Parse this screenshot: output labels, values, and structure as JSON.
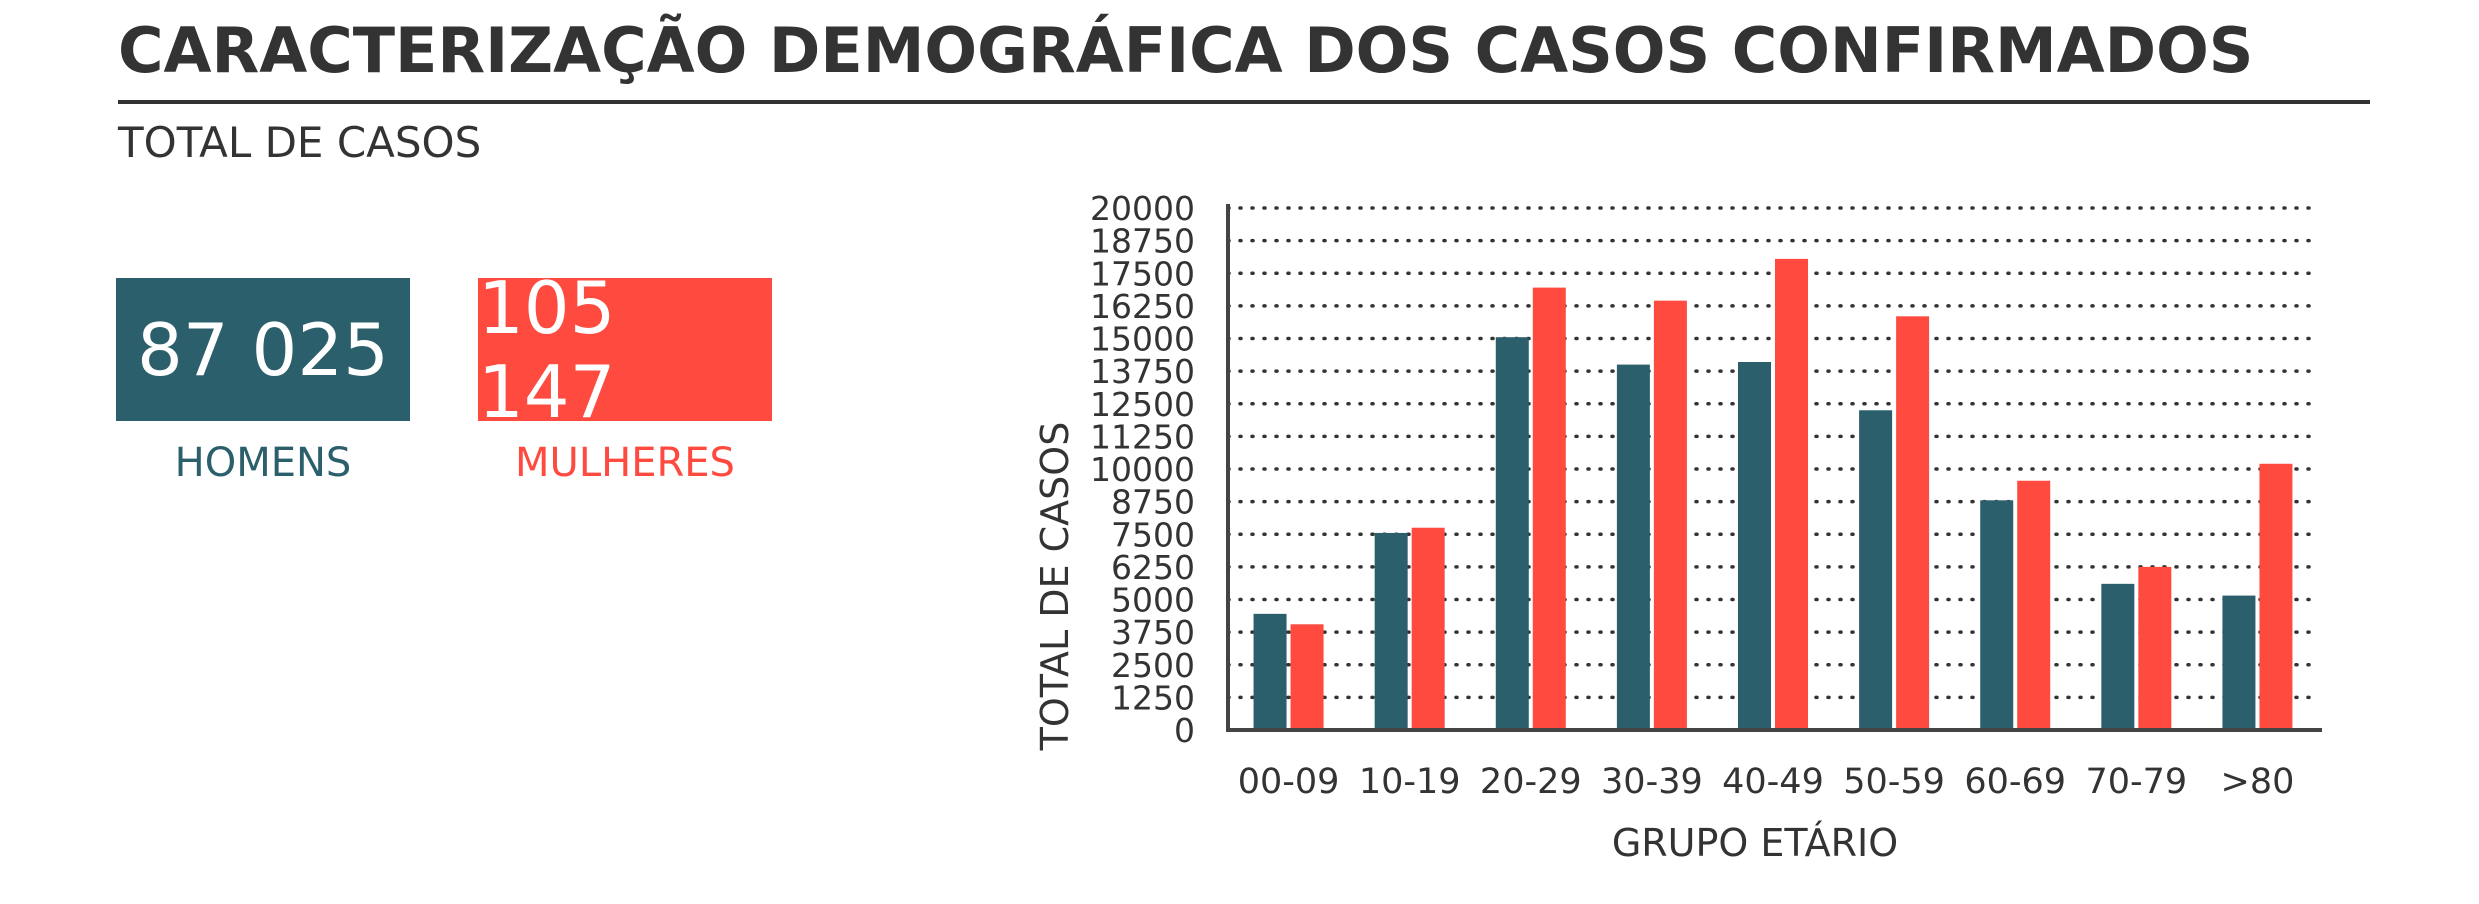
{
  "header": {
    "title": "CARACTERIZAÇÃO DEMOGRÁFICA DOS CASOS CONFIRMADOS",
    "subtitle": "TOTAL DE CASOS"
  },
  "totals": {
    "men": {
      "value": "87 025",
      "label": "HOMENS"
    },
    "women": {
      "value": "105 147",
      "label": "MULHERES"
    }
  },
  "colors": {
    "men": "#2b5f6b",
    "women": "#ff4a3f",
    "text": "#333333"
  },
  "chart_data": {
    "type": "bar",
    "categories": [
      "00-09",
      "10-19",
      "20-29",
      "30-39",
      "40-49",
      "50-59",
      "60-69",
      "70-79",
      ">80"
    ],
    "series": [
      {
        "color": "#2b5f6b",
        "values": [
          4450,
          7550,
          15050,
          14000,
          14100,
          12250,
          8800,
          5600,
          5150
        ]
      },
      {
        "color": "#ff4a3f",
        "values": [
          4050,
          7750,
          16950,
          16450,
          18050,
          15850,
          9550,
          6250,
          10200
        ]
      }
    ],
    "xlabel": "GRUPO ETÁRIO",
    "ylabel": "TOTAL DE CASOS",
    "ylim": [
      0,
      20000
    ],
    "yticks": [
      0,
      1250,
      2500,
      3750,
      5000,
      6250,
      7500,
      8750,
      10000,
      11250,
      12500,
      13750,
      15000,
      16250,
      17500,
      18750,
      20000
    ],
    "grid": true,
    "grid_style": "dotted"
  }
}
